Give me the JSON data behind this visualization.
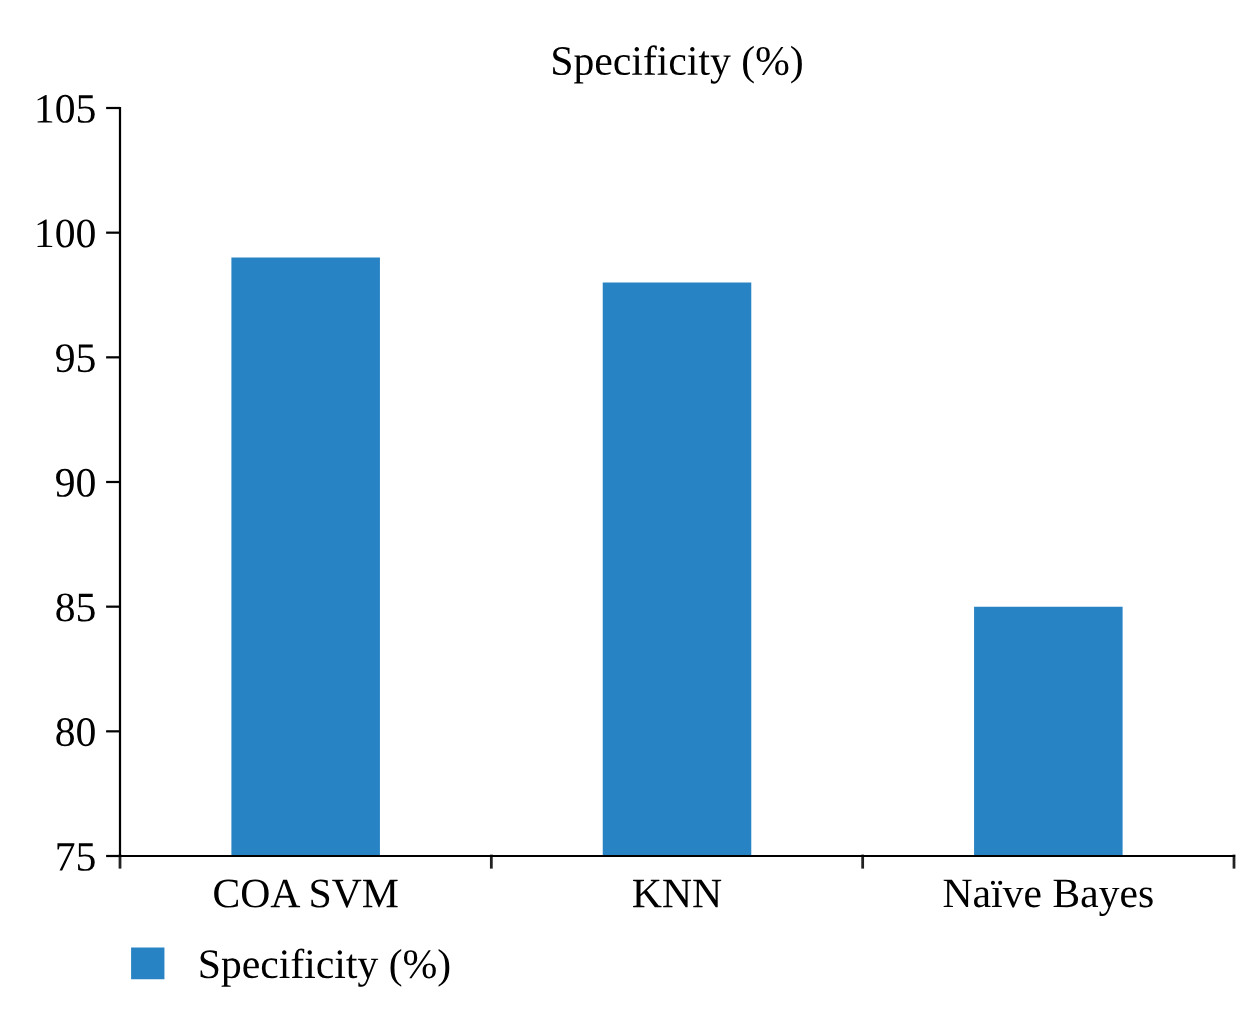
{
  "chart_data": {
    "type": "bar",
    "title": "Specificity (%)",
    "categories": [
      "COA SVM",
      "KNN",
      "Naïve Bayes"
    ],
    "series": [
      {
        "name": "Specificity (%)",
        "color": "#2783c4",
        "values": [
          99,
          98,
          85
        ]
      }
    ],
    "ylim": [
      75,
      105
    ],
    "yticks": [
      75,
      80,
      85,
      90,
      95,
      100,
      105
    ],
    "grid": false,
    "legend": "bottom left"
  }
}
